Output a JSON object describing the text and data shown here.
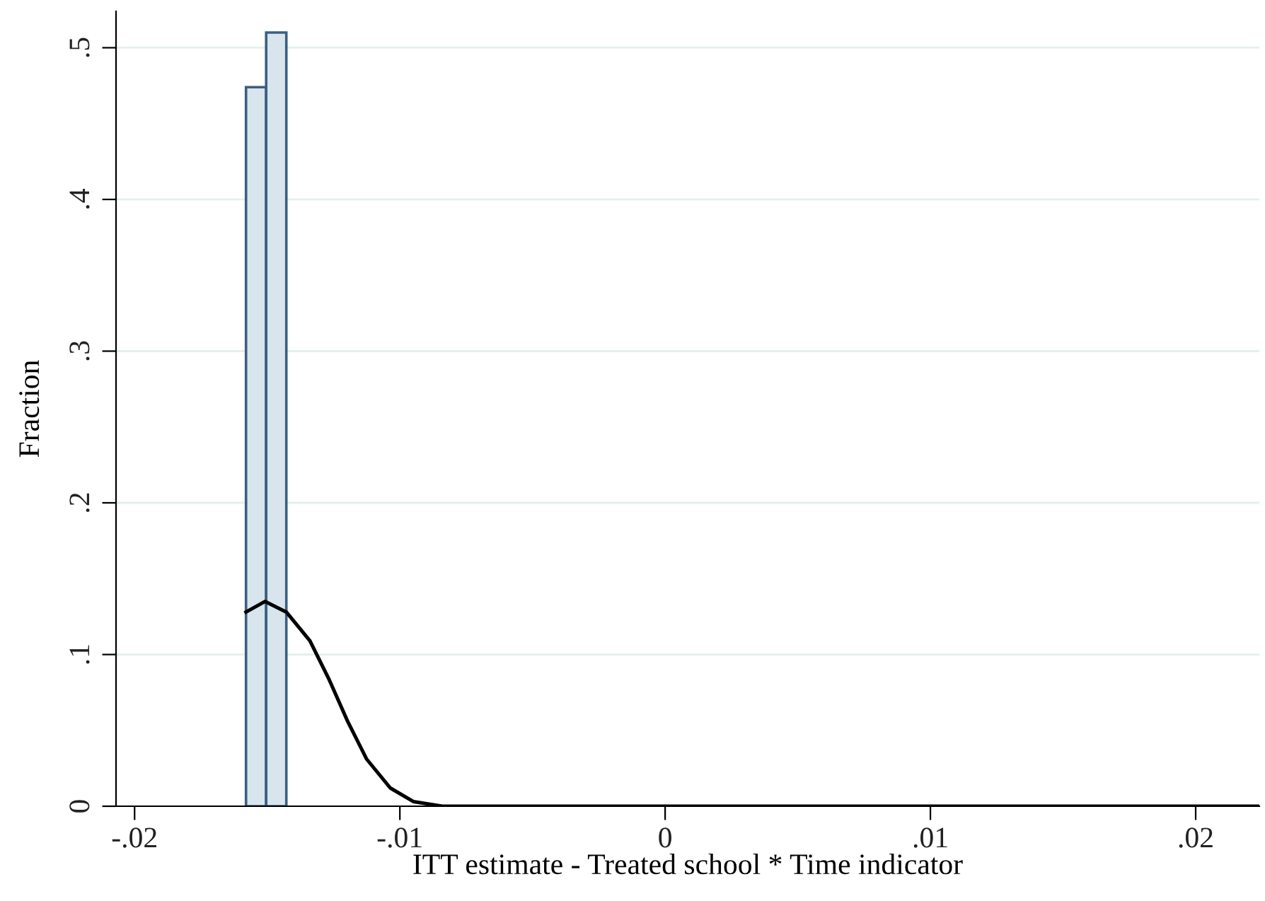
{
  "chart_data": {
    "type": "histogram",
    "xlabel": "ITT estimate - Treated school * Time indicator",
    "ylabel": "Fraction",
    "xlim": [
      -0.0207,
      0.0224
    ],
    "ylim": [
      0,
      0.524
    ],
    "xticks": [
      {
        "value": -0.02,
        "label": "-.02"
      },
      {
        "value": -0.01,
        "label": "-.01"
      },
      0,
      {
        "value": 0.01,
        "label": ".01"
      },
      {
        "value": 0.02,
        "label": ".02"
      }
    ],
    "yticks": [
      0,
      {
        "value": 0.1,
        "label": ".1"
      },
      {
        "value": 0.2,
        "label": ".2"
      },
      {
        "value": 0.3,
        "label": ".3"
      },
      {
        "value": 0.4,
        "label": ".4"
      },
      {
        "value": 0.5,
        "label": ".5"
      }
    ],
    "grid": "y",
    "series": [
      {
        "color": "#d8e5ed",
        "bins": [
          -0.0158,
          -0.01504,
          -0.01428
        ],
        "values": [
          0.474,
          0.51
        ]
      },
      {
        "type": "line",
        "color": "#000000",
        "x": [
          -0.0158,
          -0.01508,
          -0.01428,
          -0.01339,
          -0.01268,
          -0.01197,
          -0.01125,
          -0.01036,
          -0.00948,
          -0.0084,
          0.0224
        ],
        "values": [
          0.128,
          0.135,
          0.128,
          0.109,
          0.084,
          0.056,
          0.031,
          0.012,
          0.003,
          0,
          0
        ]
      }
    ]
  }
}
